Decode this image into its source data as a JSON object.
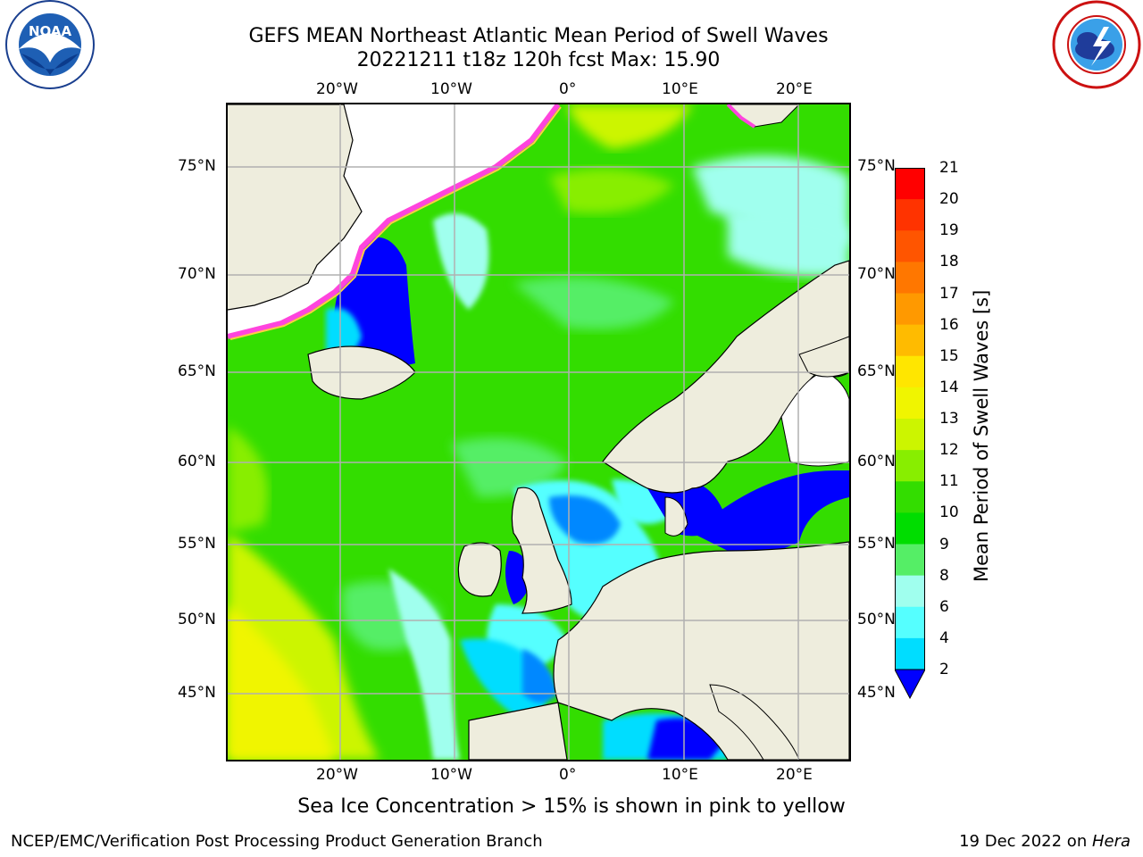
{
  "title": {
    "line1": "GEFS MEAN Northeast Atlantic Mean Period of Swell Waves",
    "line2": "20221211 t18z 120h fcst   Max: 15.90"
  },
  "logos": {
    "noaa_text": "NOAA",
    "noaa_ring": "NATIONAL OCEANIC AND ATMOSPHERIC ADMINISTRATION • U.S. DEPARTMENT OF COMMERCE",
    "nws_ring": "NATIONAL WEATHER SERVICE"
  },
  "map": {
    "lon_labels": [
      "20°W",
      "10°W",
      "0°",
      "10°E",
      "20°E"
    ],
    "lat_labels": [
      "75°N",
      "70°N",
      "65°N",
      "60°N",
      "55°N",
      "50°N",
      "45°N"
    ],
    "colors": {
      "land": "#eeeddd",
      "ice_edge": "#ff44dd",
      "ice_edge_inner": "#ffcc44",
      "grid": "#b0b0b0"
    }
  },
  "colorbar": {
    "title": "Mean Period of Swell Waves [s]",
    "labels": [
      "21",
      "20",
      "19",
      "18",
      "17",
      "16",
      "15",
      "14",
      "13",
      "12",
      "11",
      "10",
      "9",
      "8",
      "6",
      "4",
      "2"
    ],
    "colors": [
      "#ff0000",
      "#ff3300",
      "#ff5500",
      "#ff7700",
      "#ff9900",
      "#ffbb00",
      "#ffe600",
      "#f0f500",
      "#ccf500",
      "#88ee00",
      "#33dd00",
      "#00dd00",
      "#55ee66",
      "#a0ffee",
      "#55ffff",
      "#00ddff",
      "#0088ff",
      "#0000ff"
    ],
    "extend_color": "#0000ff"
  },
  "annotation": "Sea Ice Concentration > 15% is shown in pink to yellow",
  "footer": {
    "left": "NCEP/EMC/Verification Post Processing Product Generation Branch",
    "right_date": "19 Dec 2022 on ",
    "right_host": "Hera"
  }
}
